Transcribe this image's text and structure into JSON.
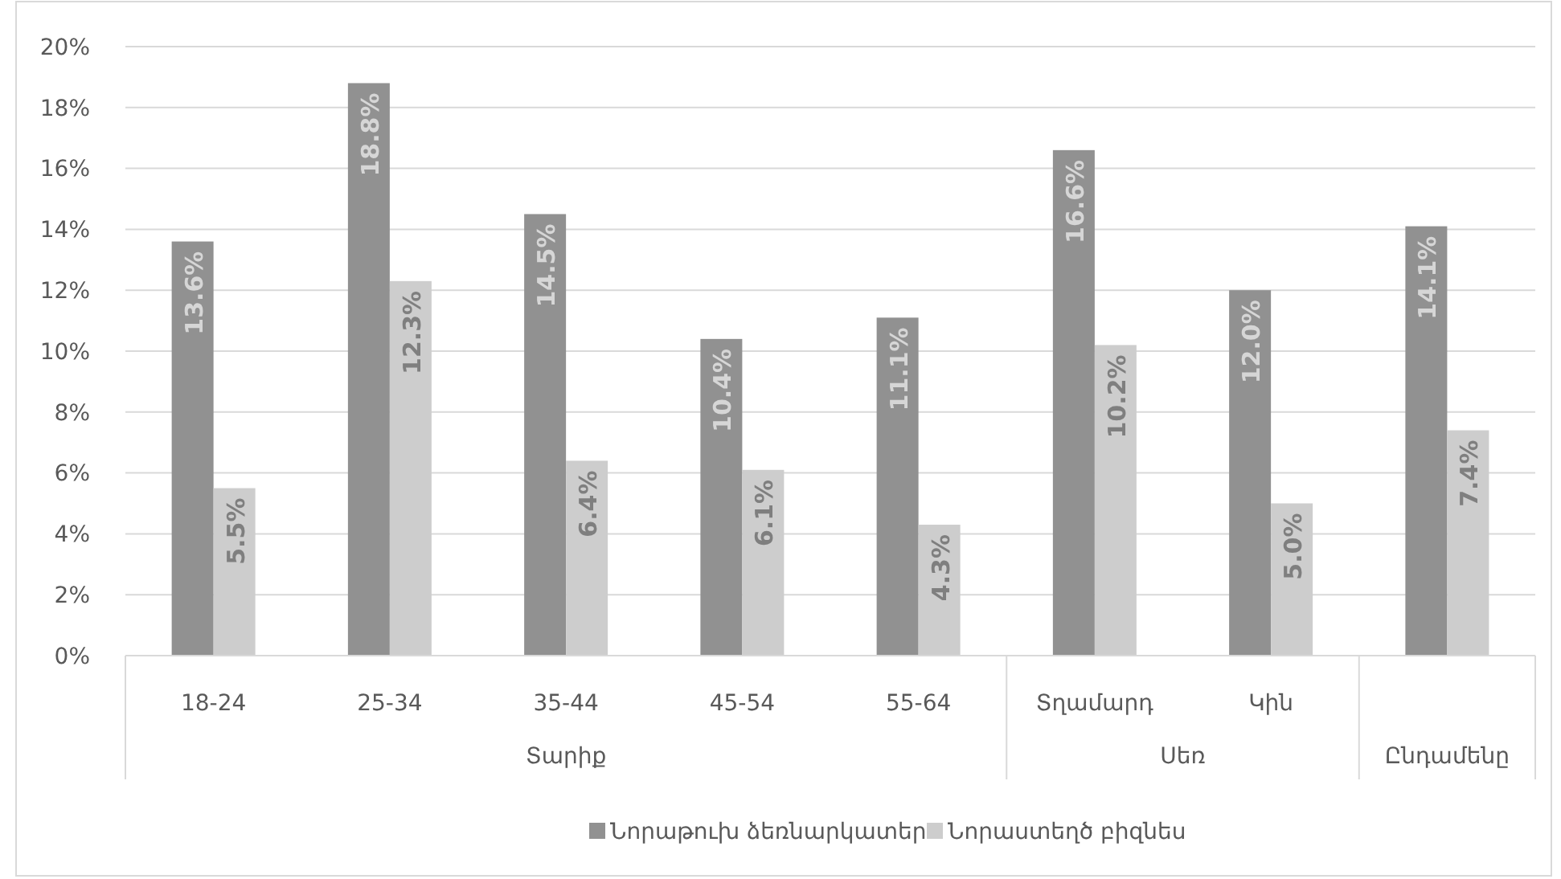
{
  "chart_data": {
    "type": "bar",
    "categories": [
      "18-24",
      "25-34",
      "35-44",
      "45-54",
      "55-64",
      "Տղամարդ",
      "Կին",
      null
    ],
    "annotations": [
      "Տարիք",
      "Սեռ",
      "Ընդամենը"
    ],
    "series": [
      {
        "name": "Նորաթուխ ձեռնարկատեր",
        "color": "#919191",
        "values": [
          13.6,
          18.8,
          14.5,
          10.4,
          11.1,
          16.6,
          12.0,
          14.1
        ],
        "value_labels": [
          "13.6%",
          "18.8%",
          "14.5%",
          "10.4%",
          "11.1%",
          "16.6%",
          "12.0%",
          "14.1%"
        ]
      },
      {
        "name": "Նորաստեղծ բիզնես",
        "color": "#cdcdcd",
        "values": [
          5.5,
          12.3,
          6.4,
          6.1,
          4.3,
          10.2,
          5.0,
          7.4
        ],
        "value_labels": [
          "5.5%",
          "12.3%",
          "6.4%",
          "6.1%",
          "4.3%",
          "10.2%",
          "5.0%",
          "7.4%"
        ]
      }
    ],
    "ylim": [
      0,
      20
    ],
    "yticks": [
      {
        "value": 0,
        "label": "0%"
      },
      {
        "value": 2,
        "label": "2%"
      },
      {
        "value": 4,
        "label": "4%"
      },
      {
        "value": 6,
        "label": "6%"
      },
      {
        "value": 8,
        "label": "8%"
      },
      {
        "value": 10,
        "label": "10%"
      },
      {
        "value": 12,
        "label": "12%"
      },
      {
        "value": 14,
        "label": "14%"
      },
      {
        "value": 16,
        "label": "16%"
      },
      {
        "value": 18,
        "label": "18%"
      },
      {
        "value": 20,
        "label": "20%"
      }
    ],
    "grid": "y",
    "legend": "bottom"
  }
}
